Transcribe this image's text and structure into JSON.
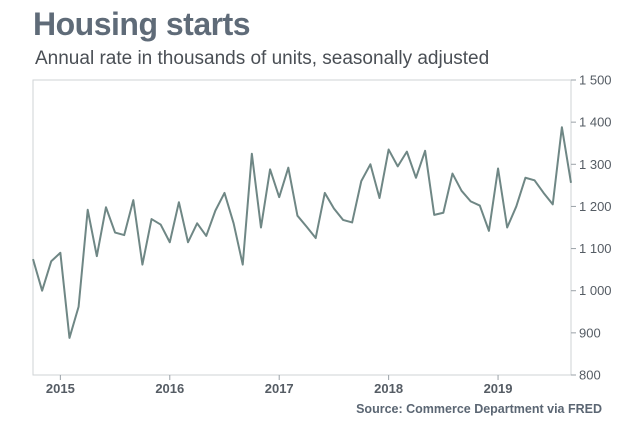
{
  "chart_data": {
    "type": "line",
    "title": "Housing starts",
    "subtitle": "Annual rate in thousands of units, seasonally adjusted",
    "source": "Source: Commerce Department via FRED",
    "xlabel": "",
    "ylabel": "",
    "ylim": [
      800,
      1500
    ],
    "yticks": [
      {
        "value": 800,
        "label": "800"
      },
      {
        "value": 900,
        "label": "900"
      },
      {
        "value": 1000,
        "label": "1 000"
      },
      {
        "value": 1100,
        "label": "1 100"
      },
      {
        "value": 1200,
        "label": "1 200"
      },
      {
        "value": 1300,
        "label": "1 300"
      },
      {
        "value": 1400,
        "label": "1 400"
      },
      {
        "value": 1500,
        "label": "1 500"
      }
    ],
    "xticks": [
      {
        "value": "2015-01",
        "label": "2015"
      },
      {
        "value": "2016-01",
        "label": "2016"
      },
      {
        "value": "2017-01",
        "label": "2017"
      },
      {
        "value": "2018-01",
        "label": "2018"
      },
      {
        "value": "2019-01",
        "label": "2019"
      }
    ],
    "grid": false,
    "line_color": "#6f8785",
    "x": [
      "2014-10",
      "2014-11",
      "2014-12",
      "2015-01",
      "2015-02",
      "2015-03",
      "2015-04",
      "2015-05",
      "2015-06",
      "2015-07",
      "2015-08",
      "2015-09",
      "2015-10",
      "2015-11",
      "2015-12",
      "2016-01",
      "2016-02",
      "2016-03",
      "2016-04",
      "2016-05",
      "2016-06",
      "2016-07",
      "2016-08",
      "2016-09",
      "2016-10",
      "2016-11",
      "2016-12",
      "2017-01",
      "2017-02",
      "2017-03",
      "2017-04",
      "2017-05",
      "2017-06",
      "2017-07",
      "2017-08",
      "2017-09",
      "2017-10",
      "2017-11",
      "2017-12",
      "2018-01",
      "2018-02",
      "2018-03",
      "2018-04",
      "2018-05",
      "2018-06",
      "2018-07",
      "2018-08",
      "2018-09",
      "2018-10",
      "2018-11",
      "2018-12",
      "2019-01",
      "2019-02",
      "2019-03",
      "2019-04",
      "2019-05",
      "2019-06",
      "2019-07",
      "2019-08",
      "2019-09"
    ],
    "series": [
      {
        "values": [
          1075,
          1000,
          1070,
          1090,
          888,
          962,
          1192,
          1082,
          1198,
          1138,
          1132,
          1215,
          1062,
          1170,
          1157,
          1115,
          1210,
          1115,
          1160,
          1130,
          1190,
          1232,
          1160,
          1062,
          1325,
          1150,
          1288,
          1222,
          1292,
          1178,
          1152,
          1125,
          1232,
          1195,
          1168,
          1162,
          1260,
          1300,
          1220,
          1335,
          1295,
          1330,
          1268,
          1332,
          1180,
          1185,
          1278,
          1237,
          1212,
          1202,
          1142,
          1290,
          1150,
          1200,
          1268,
          1262,
          1232,
          1205,
          1388,
          1256
        ]
      }
    ]
  }
}
